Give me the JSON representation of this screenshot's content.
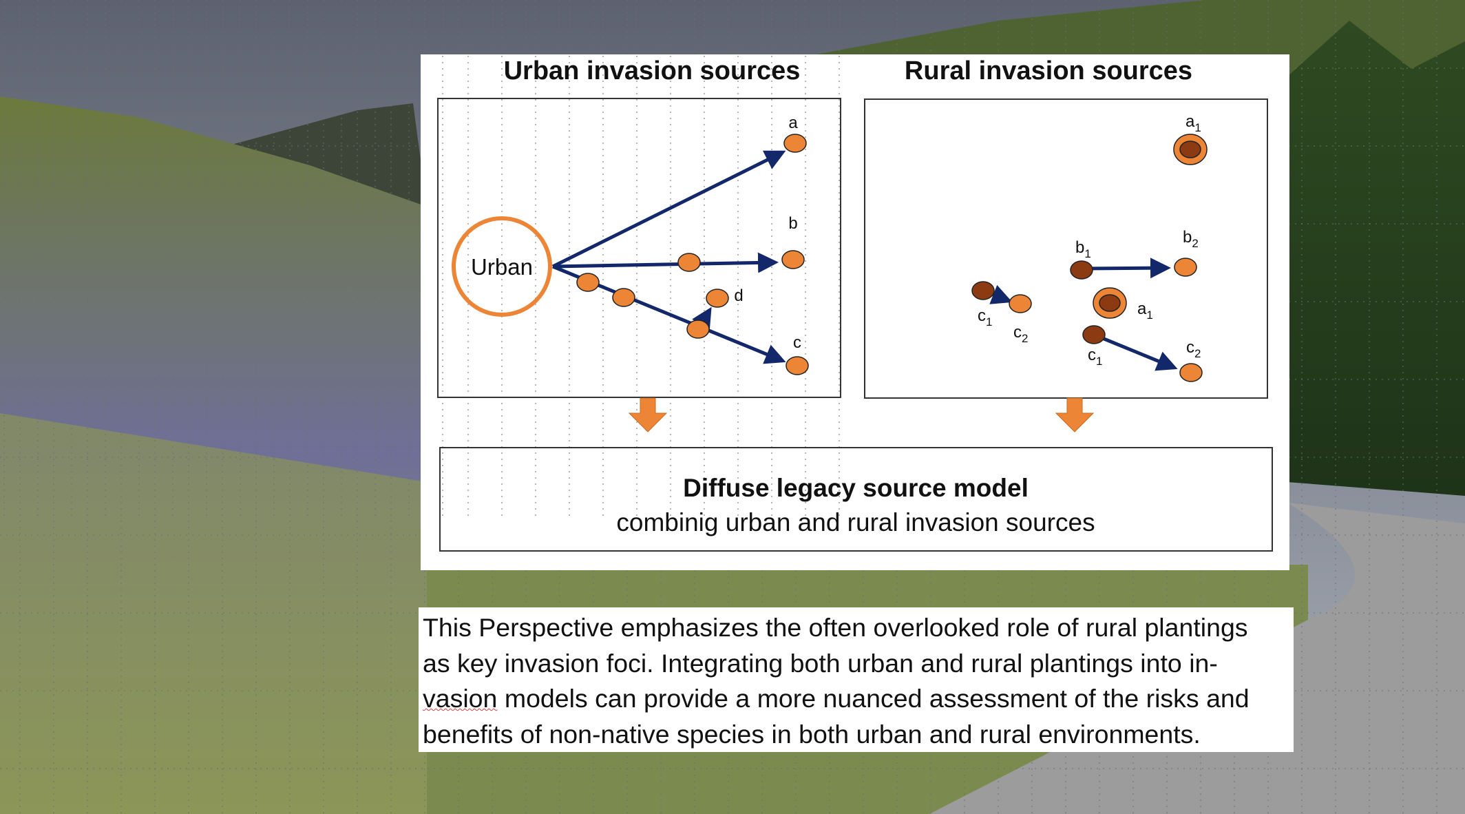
{
  "diagram": {
    "urban_title": "Urban invasion sources",
    "rural_title": "Rural invasion sources",
    "urban_label": "Urban",
    "urban_nodes": {
      "a": "a",
      "b": "b",
      "c": "c",
      "d": "d"
    },
    "rural_nodes": {
      "a1": "a",
      "b1": "b",
      "b2": "b",
      "c1": "c",
      "c2": "c",
      "sub1": "1",
      "sub2": "2"
    },
    "model_title": "Diffuse legacy source model",
    "model_subtitle": "combinig urban and rural invasion sources",
    "colors": {
      "node_orange": "#ed8536",
      "node_dark": "#8b3a12",
      "arrow": "#13286b",
      "urban_circle": "#ed8536"
    }
  },
  "caption": {
    "line1": "This Perspective emphasizes the often overlooked role of rural plantings",
    "line2": "as key invasion foci. Integrating both urban and rural plantings into in-",
    "line3_underlined": "vasion",
    "line3": " models can provide a more nuanced assessment of the risks and",
    "line4": "benefits of non-native species in both urban and rural environments."
  }
}
